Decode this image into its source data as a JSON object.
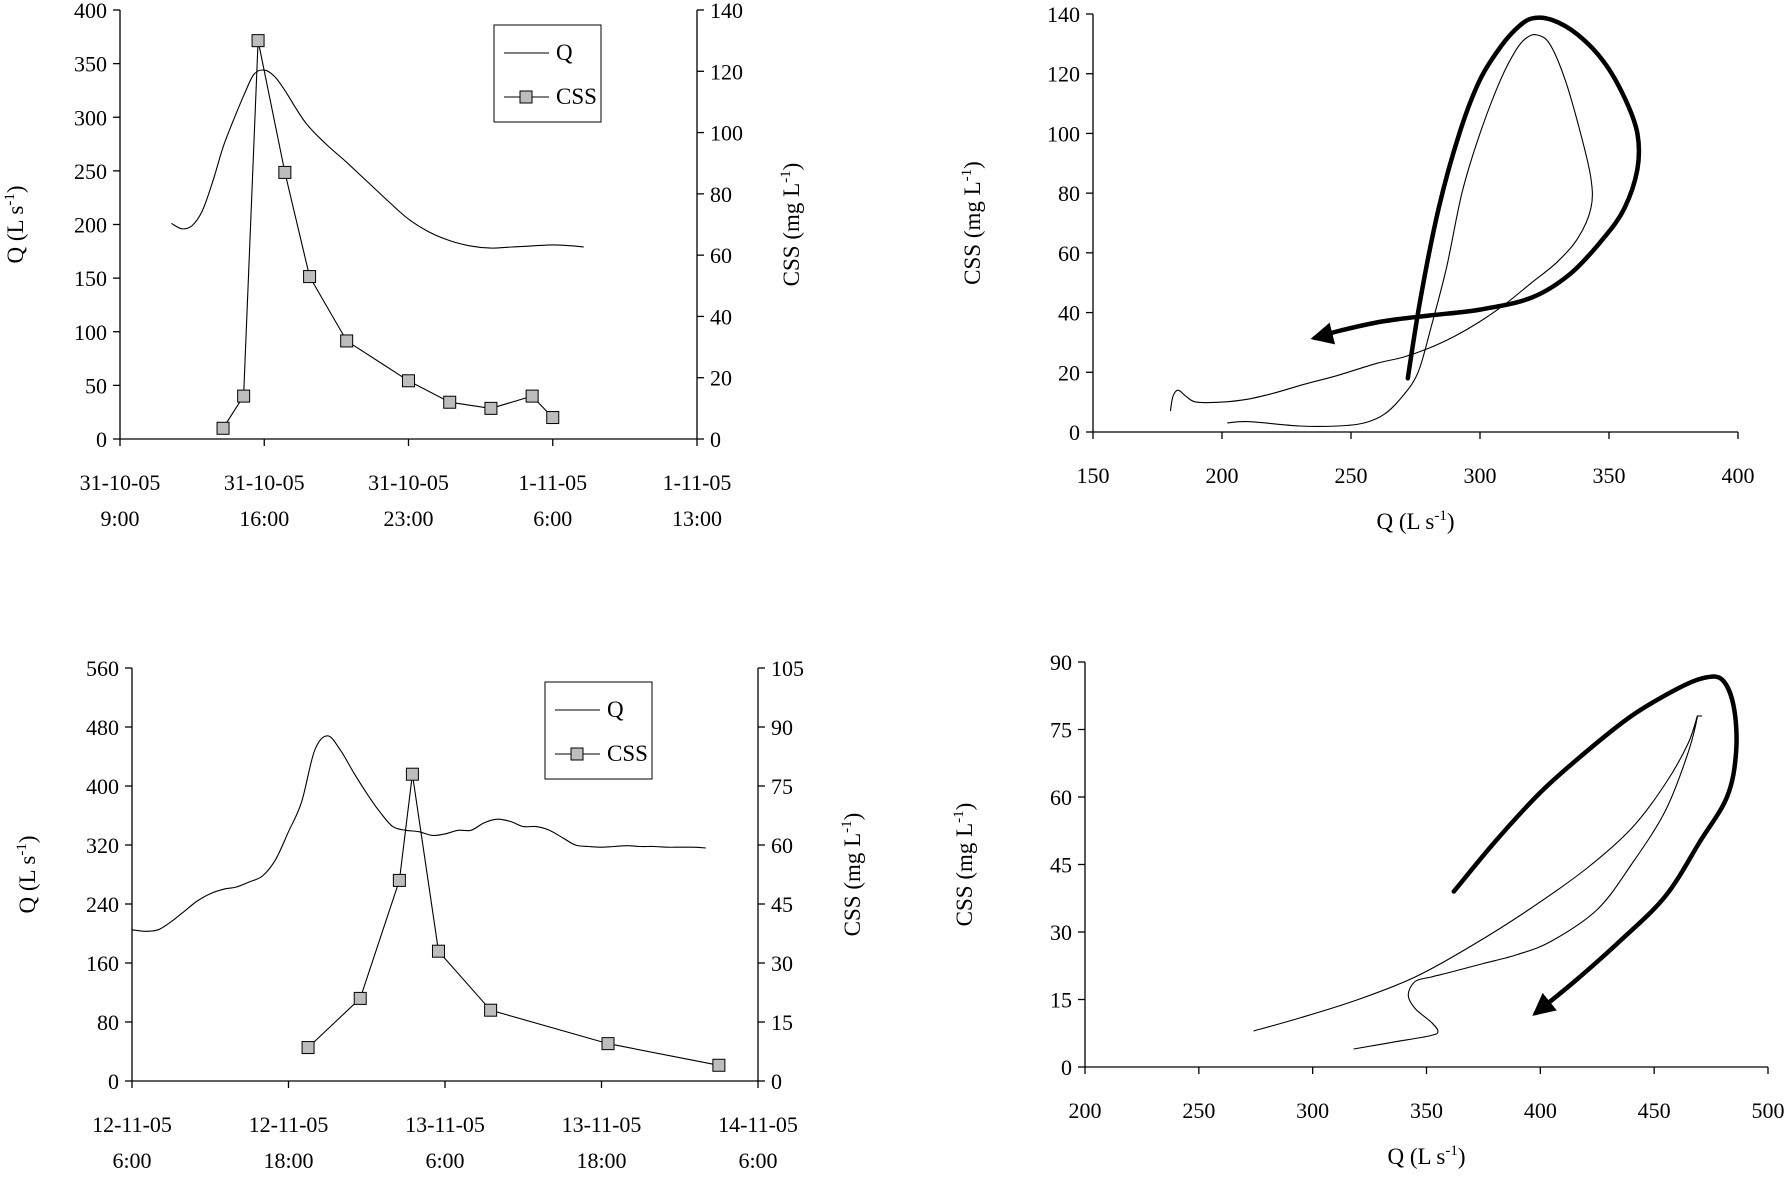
{
  "chart_data": [
    {
      "id": "tl",
      "type": "line",
      "title": "",
      "xticks": [
        {
          "x": 0,
          "l1": "31-10-05",
          "l2": "9:00"
        },
        {
          "x": 7,
          "l1": "31-10-05",
          "l2": "16:00"
        },
        {
          "x": 14,
          "l1": "31-10-05",
          "l2": "23:00"
        },
        {
          "x": 21,
          "l1": "1-11-05",
          "l2": "6:00"
        },
        {
          "x": 28,
          "l1": "1-11-05",
          "l2": "13:00"
        }
      ],
      "xlim": [
        0,
        28
      ],
      "ylim": [
        0,
        400
      ],
      "y2lim": [
        0,
        140
      ],
      "yticks": [
        0,
        50,
        100,
        150,
        200,
        250,
        300,
        350,
        400
      ],
      "y2ticks": [
        0,
        20,
        40,
        60,
        80,
        100,
        120,
        140
      ],
      "ylabel": "Q (L s",
      "ylabel_sup": "-1",
      "ylabel_end": ")",
      "y2label": "CSS (mg L",
      "y2label_sup": "-1",
      "y2label_end": ")",
      "legend": {
        "q": "Q",
        "css": "CSS"
      },
      "series": [
        {
          "name": "Q",
          "axis": "left",
          "x": [
            2.5,
            3,
            3.5,
            4,
            4.5,
            5,
            5.5,
            6,
            6.5,
            7,
            7.5,
            8,
            9,
            10,
            11,
            12,
            13,
            14,
            15,
            16,
            17,
            18,
            19,
            20,
            21,
            22,
            22.5
          ],
          "y": [
            201,
            196,
            199,
            213,
            240,
            272,
            297,
            320,
            340,
            344,
            338,
            325,
            295,
            275,
            258,
            240,
            222,
            205,
            193,
            185,
            180,
            178,
            179,
            180,
            181,
            180,
            179
          ]
        },
        {
          "name": "CSS",
          "axis": "right",
          "x": [
            5,
            6,
            6.7,
            8,
            9.2,
            11,
            14,
            16,
            18,
            20,
            21
          ],
          "y": [
            3.5,
            14,
            130,
            87,
            53,
            32,
            19,
            12,
            10,
            14,
            7
          ]
        }
      ]
    },
    {
      "id": "tr",
      "type": "line",
      "xlim": [
        150,
        400
      ],
      "ylim": [
        0,
        140
      ],
      "xticks": [
        150,
        200,
        250,
        300,
        350,
        400
      ],
      "yticks": [
        0,
        20,
        40,
        60,
        80,
        100,
        120,
        140
      ],
      "xlabel": "Q (L s",
      "xlabel_sup": "-1",
      "xlabel_end": ")",
      "ylabel": "CSS (mg L",
      "ylabel_sup": "-1",
      "ylabel_end": ")",
      "series": [
        {
          "name": "hysteresis",
          "x": [
            202,
            210,
            230,
            245,
            255,
            263,
            270,
            276,
            281,
            287,
            293,
            300,
            308,
            314,
            318,
            322,
            327,
            333,
            339,
            343,
            343,
            338,
            330,
            320,
            310,
            300,
            290,
            280,
            270,
            260,
            245,
            232,
            220,
            210,
            200,
            190,
            186,
            183,
            181,
            180
          ],
          "y": [
            3,
            3.5,
            2,
            2,
            3,
            6,
            12,
            20,
            35,
            55,
            80,
            100,
            118,
            128,
            132,
            133,
            130,
            118,
            100,
            85,
            75,
            65,
            57,
            50,
            43,
            37,
            32,
            28,
            25,
            23,
            19,
            16,
            13,
            11,
            10,
            10,
            12,
            14,
            12,
            7
          ]
        }
      ],
      "arrow": {
        "x": [
          272,
          277,
          284,
          292,
          300,
          308,
          314,
          320,
          328,
          338,
          348,
          356,
          361,
          361,
          356,
          348,
          335,
          320,
          300,
          280,
          262,
          246,
          238,
          236
        ],
        "y": [
          18,
          45,
          75,
          100,
          118,
          129,
          135,
          138.5,
          138,
          133,
          124,
          112,
          100,
          88,
          75,
          65,
          53,
          45,
          41,
          39,
          37,
          34,
          32,
          31.5
        ]
      }
    },
    {
      "id": "bl",
      "type": "line",
      "xticks": [
        {
          "x": 0,
          "l1": "12-11-05",
          "l2": "6:00"
        },
        {
          "x": 12,
          "l1": "12-11-05",
          "l2": "18:00"
        },
        {
          "x": 24,
          "l1": "13-11-05",
          "l2": "6:00"
        },
        {
          "x": 36,
          "l1": "13-11-05",
          "l2": "18:00"
        },
        {
          "x": 48,
          "l1": "14-11-05",
          "l2": "6:00"
        }
      ],
      "xlim": [
        0,
        48
      ],
      "ylim": [
        0,
        560
      ],
      "y2lim": [
        0,
        105
      ],
      "yticks": [
        0,
        80,
        160,
        240,
        320,
        400,
        480,
        560
      ],
      "y2ticks": [
        0,
        15,
        30,
        45,
        60,
        75,
        90,
        105
      ],
      "ylabel": "Q (L s",
      "ylabel_sup": "-1",
      "ylabel_end": ")",
      "y2label": "CSS (mg L",
      "y2label_sup": "-1",
      "y2label_end": ")",
      "legend": {
        "q": "Q",
        "css": "CSS"
      },
      "series": [
        {
          "name": "Q",
          "axis": "left",
          "x": [
            0,
            1,
            2,
            3,
            4,
            5,
            6,
            7,
            8,
            9,
            10,
            11,
            12,
            13,
            14,
            15,
            16,
            17,
            18,
            19,
            20,
            21,
            22,
            23,
            24,
            25,
            26,
            27,
            28,
            29,
            30,
            31,
            32,
            33,
            34,
            35,
            36,
            37,
            38,
            39,
            40,
            41,
            42,
            43,
            44
          ],
          "y": [
            205,
            203,
            205,
            216,
            230,
            244,
            254,
            260,
            263,
            270,
            278,
            300,
            338,
            378,
            448,
            468,
            448,
            418,
            390,
            365,
            345,
            340,
            338,
            333,
            335,
            340,
            340,
            350,
            355,
            352,
            345,
            345,
            340,
            330,
            320,
            318,
            317,
            318,
            319,
            318,
            318,
            317,
            317,
            317,
            316
          ]
        },
        {
          "name": "CSS",
          "axis": "right",
          "x": [
            13.5,
            17.5,
            20.5,
            21.5,
            23.5,
            27.5,
            36.5,
            45
          ],
          "y": [
            8.5,
            21,
            51,
            78,
            33,
            18,
            9.5,
            4
          ]
        }
      ]
    },
    {
      "id": "br",
      "type": "line",
      "xlim": [
        200,
        500
      ],
      "ylim": [
        0,
        90
      ],
      "xticks": [
        200,
        250,
        300,
        350,
        400,
        450,
        500
      ],
      "yticks": [
        0,
        15,
        30,
        45,
        60,
        75,
        90
      ],
      "xlabel": "Q (L s",
      "xlabel_sup": "-1",
      "xlabel_end": ")",
      "ylabel": "CSS (mg L",
      "ylabel_sup": "-1",
      "ylabel_end": ")",
      "series": [
        {
          "name": "hysteresis",
          "x": [
            274,
            295,
            320,
            345,
            370,
            395,
            420,
            440,
            455,
            465,
            469,
            465,
            455,
            440,
            425,
            405,
            390,
            375,
            360,
            352,
            345,
            342,
            345,
            352,
            355,
            352,
            335,
            318
          ],
          "y": [
            8,
            11,
            15,
            20,
            27,
            35,
            44,
            53,
            63,
            72,
            78,
            70,
            57,
            45,
            35,
            28,
            25,
            23,
            21,
            20,
            19,
            16,
            13,
            10,
            8,
            7,
            5.5,
            4
          ]
        },
        {
          "name": "hysteresis-b",
          "x": [
            469,
            471
          ],
          "y": [
            78,
            78
          ]
        }
      ],
      "arrow": {
        "x": [
          362,
          380,
          400,
          420,
          440,
          460,
          472,
          480,
          485,
          486,
          482,
          470,
          455,
          435,
          415,
          398
        ],
        "y": [
          39,
          50,
          61,
          70,
          78,
          84,
          86.5,
          86,
          80,
          70,
          60,
          50,
          38,
          28,
          19,
          12
        ]
      }
    }
  ]
}
